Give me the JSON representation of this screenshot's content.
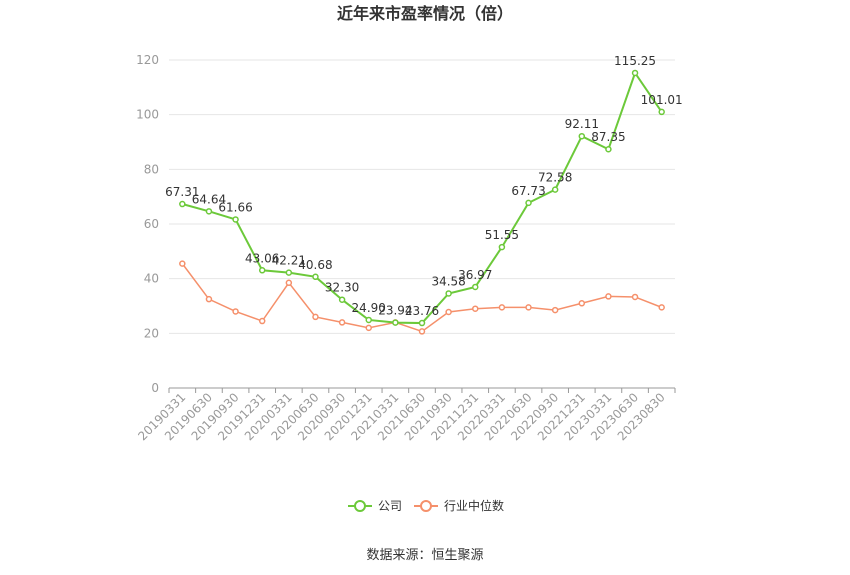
{
  "chart_data": {
    "type": "line",
    "title": "近年来市盈率情况（倍）",
    "categories": [
      "20190331",
      "20190630",
      "20190930",
      "20191231",
      "20200331",
      "20200630",
      "20200930",
      "20201231",
      "20210331",
      "20210630",
      "20210930",
      "20211231",
      "20220331",
      "20220630",
      "20220930",
      "20221231",
      "20230331",
      "20230630",
      "20230830"
    ],
    "ylim": [
      0,
      120
    ],
    "yticks": [
      0,
      20,
      40,
      60,
      80,
      100,
      120
    ],
    "grid": true,
    "legend": "bottom",
    "series": [
      {
        "name": "公司",
        "color": "#6cc93a",
        "labels": true,
        "values": [
          67.31,
          64.64,
          61.66,
          43.06,
          42.21,
          40.68,
          32.3,
          24.9,
          23.94,
          23.76,
          34.58,
          36.97,
          51.55,
          67.73,
          72.58,
          92.11,
          87.35,
          115.25,
          101.01
        ]
      },
      {
        "name": "行业中位数",
        "color": "#f5906b",
        "labels": false,
        "values": [
          45.5,
          32.5,
          28.0,
          24.5,
          38.5,
          26.0,
          24.0,
          22.0,
          24.0,
          20.7,
          27.8,
          29.0,
          29.5,
          29.5,
          28.5,
          31.0,
          33.5,
          33.3,
          29.5
        ]
      }
    ],
    "source": "数据来源：恒生聚源"
  }
}
